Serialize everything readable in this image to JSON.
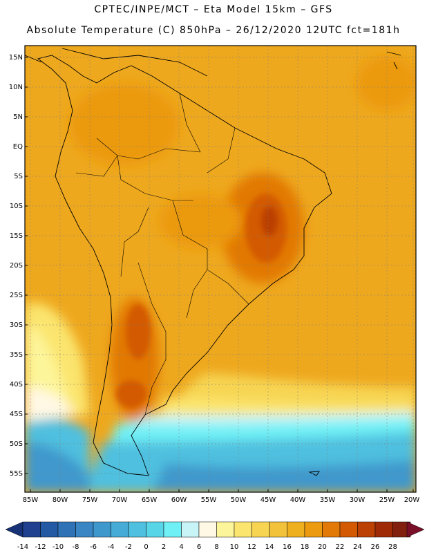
{
  "header": {
    "title_line1": "CPTEC/INPE/MCT –  Eta Model 15km – GFS",
    "title_line2": "Absolute Temperature (C) 850hPa – 26/12/2020 12UTC fct=181h"
  },
  "map": {
    "lat_labels": [
      "15N",
      "10N",
      "5N",
      "EQ",
      "5S",
      "10S",
      "15S",
      "20S",
      "25S",
      "30S",
      "35S",
      "40S",
      "45S",
      "50S",
      "55S"
    ],
    "lon_labels": [
      "85W",
      "80W",
      "75W",
      "70W",
      "65W",
      "60W",
      "55W",
      "50W",
      "45W",
      "40W",
      "35W",
      "30W",
      "25W",
      "20W"
    ]
  },
  "colorbar": {
    "labels": [
      "-14",
      "-12",
      "-10",
      "-8",
      "-6",
      "-4",
      "-2",
      "0",
      "2",
      "4",
      "6",
      "8",
      "10",
      "12",
      "14",
      "16",
      "18",
      "20",
      "22",
      "24",
      "26",
      "28"
    ],
    "colors": [
      "#1f3f8f",
      "#245aa3",
      "#2f73b6",
      "#3a86c4",
      "#3f98cc",
      "#46abd6",
      "#4fc0df",
      "#59d5e8",
      "#6ff0f5",
      "#c8f4f8",
      "#fff8e4",
      "#fdf59a",
      "#fbe56e",
      "#f7d553",
      "#f2c23b",
      "#efb020",
      "#ec9a10",
      "#e27805",
      "#d35a03",
      "#bb4104",
      "#9e2a07",
      "#822010"
    ],
    "under_color": "#173276",
    "over_color": "#7a0f2a"
  }
}
